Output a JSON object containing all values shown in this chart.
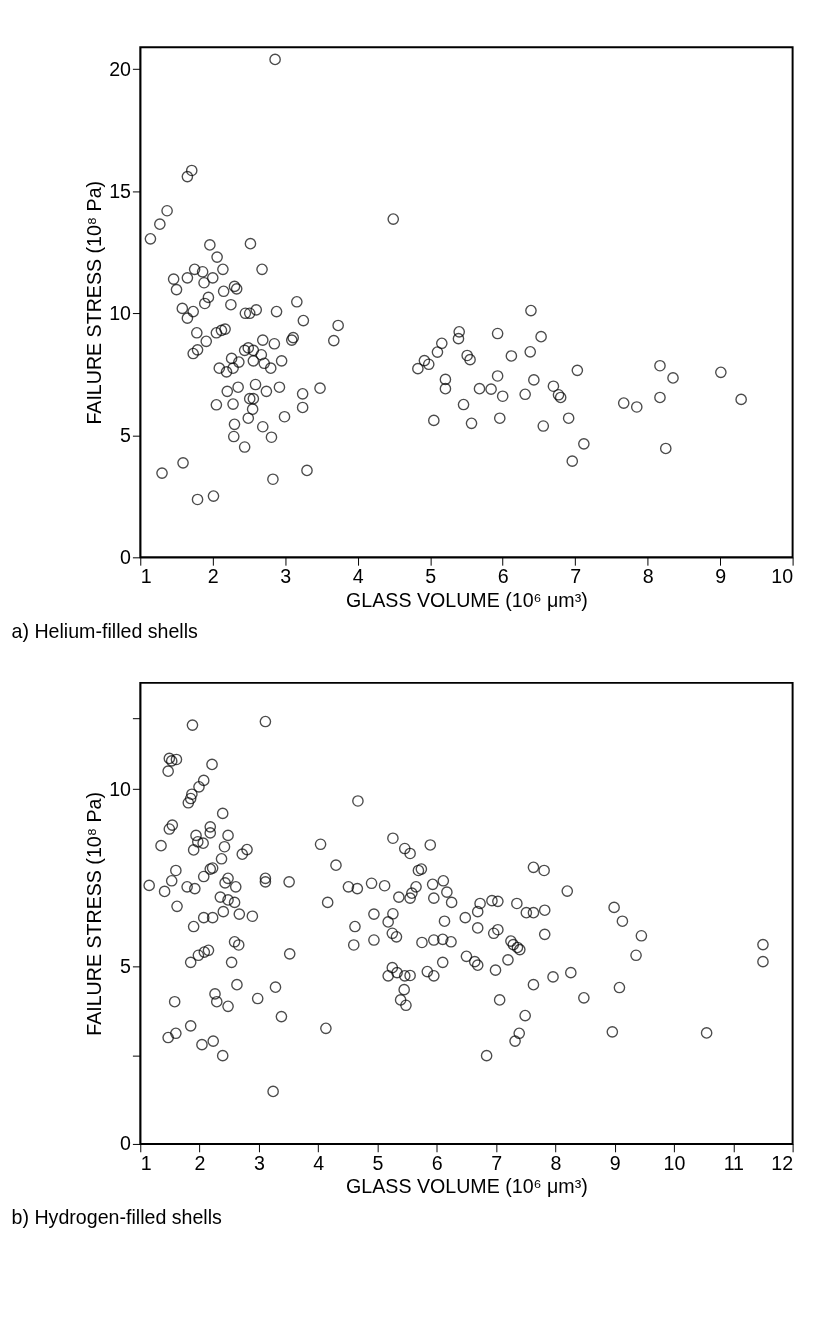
{
  "chart_data": [
    {
      "type": "scatter",
      "title": "a) Helium-filled shells",
      "xlabel": "GLASS VOLUME (10⁶ μm³)",
      "ylabel": "FAILURE STRESS (10⁸ Pa)",
      "xlim": [
        1,
        10
      ],
      "xticks": [
        1,
        2,
        3,
        4,
        5,
        6,
        7,
        8,
        9,
        10
      ],
      "ylim": [
        0,
        20.9
      ],
      "yticks": [
        0,
        5,
        10,
        15,
        20
      ],
      "grid": false,
      "marker": "circle",
      "series": [
        {
          "color": "#000000",
          "x": [
            1.14,
            1.27,
            1.37,
            1.65,
            1.71,
            2.86,
            4.49,
            1.46,
            1.5,
            1.58,
            1.65,
            1.73,
            1.65,
            1.75,
            1.86,
            1.88,
            1.89,
            1.94,
            1.96,
            2.06,
            2.0,
            2.14,
            2.15,
            2.25,
            2.3,
            2.33,
            1.78,
            1.73,
            1.79,
            1.91,
            2.05,
            2.12,
            2.17,
            2.09,
            2.19,
            2.26,
            2.28,
            2.35,
            2.36,
            2.2,
            2.05,
            2.28,
            2.3,
            2.29,
            2.44,
            2.45,
            2.51,
            2.6,
            2.52,
            2.68,
            2.88,
            2.44,
            2.49,
            2.56,
            2.67,
            2.69,
            2.85,
            2.95,
            2.56,
            2.71,
            2.8,
            2.59,
            2.56,
            2.74,
            2.92,
            2.51,
            2.49,
            2.55,
            2.69,
            2.81,
            2.99,
            3.11,
            3.09,
            3.16,
            3.25,
            3.24,
            3.24,
            3.48,
            3.67,
            3.73,
            3.3,
            2.83,
            1.3,
            1.59,
            1.79,
            2.01,
            4.83,
            4.92,
            4.98,
            5.1,
            5.16,
            5.21,
            5.21,
            5.05,
            5.4,
            5.39,
            5.51,
            5.55,
            5.46,
            5.57,
            5.68,
            5.84,
            5.93,
            5.93,
            6.0,
            5.96,
            6.12,
            6.31,
            6.38,
            6.39,
            6.43,
            6.53,
            6.56,
            6.7,
            6.77,
            6.8,
            6.91,
            6.96,
            7.03,
            7.12,
            7.67,
            7.85,
            8.17,
            8.17,
            8.35,
            8.25,
            9.01,
            9.29
          ],
          "values": [
            13.05,
            13.65,
            14.2,
            15.6,
            15.85,
            20.4,
            13.86,
            11.4,
            10.97,
            10.2,
            9.8,
            10.07,
            11.45,
            11.8,
            11.7,
            11.25,
            10.4,
            10.65,
            12.8,
            12.3,
            11.45,
            11.8,
            10.9,
            10.35,
            11.1,
            11.0,
            9.2,
            8.35,
            8.5,
            8.85,
            9.2,
            9.3,
            9.35,
            7.75,
            7.6,
            8.15,
            7.75,
            6.97,
            8.0,
            6.8,
            6.25,
            6.28,
            5.45,
            4.95,
            4.52,
            10.0,
            10.0,
            10.14,
            12.85,
            11.8,
            10.07,
            8.48,
            8.58,
            8.48,
            8.3,
            8.9,
            8.75,
            8.05,
            8.05,
            7.95,
            7.75,
            7.08,
            6.5,
            6.8,
            6.97,
            6.5,
            5.7,
            6.07,
            5.35,
            4.92,
            5.76,
            9.0,
            8.9,
            10.47,
            9.7,
            6.7,
            6.14,
            6.93,
            8.88,
            9.5,
            3.56,
            3.2,
            3.45,
            3.87,
            2.37,
            2.51,
            7.73,
            8.06,
            7.91,
            8.41,
            8.77,
            7.29,
            6.91,
            5.61,
            9.24,
            8.96,
            8.27,
            8.1,
            6.26,
            5.49,
            6.91,
            6.89,
            7.43,
            9.17,
            6.6,
            5.7,
            8.25,
            6.68,
            8.42,
            10.11,
            7.27,
            9.04,
            5.38,
            7.01,
            6.66,
            6.55,
            5.7,
            3.94,
            7.66,
            4.65,
            6.32,
            6.16,
            7.85,
            6.55,
            7.35,
            4.46,
            7.58,
            6.47
          ]
        }
      ]
    },
    {
      "type": "scatter",
      "title": "b) Hydrogen-filled shells",
      "xlabel": "GLASS VOLUME (10⁶ μm³)",
      "ylabel": "FAILURE STRESS (10⁸ Pa)",
      "xlim": [
        1,
        12
      ],
      "xticks": [
        1,
        2,
        3,
        4,
        5,
        6,
        7,
        8,
        9,
        10,
        11,
        12
      ],
      "ylim": [
        0,
        13
      ],
      "yticks": [
        0,
        {
          "value": 2.5,
          "label": null
        },
        5,
        10,
        {
          "value": 12,
          "label": null
        }
      ],
      "grid": false,
      "marker": "circle",
      "series": [
        {
          "color": "#000000",
          "x": [
            1.15,
            1.35,
            1.41,
            1.53,
            1.6,
            1.62,
            1.47,
            1.49,
            1.53,
            1.61,
            1.49,
            1.54,
            1.58,
            1.47,
            1.6,
            1.85,
            1.88,
            1.81,
            1.85,
            1.87,
            1.99,
            2.07,
            2.21,
            1.94,
            1.97,
            1.9,
            2.06,
            2.18,
            2.18,
            1.79,
            1.92,
            2.07,
            2.18,
            2.22,
            2.39,
            2.48,
            2.42,
            2.37,
            2.48,
            2.43,
            2.35,
            2.48,
            2.59,
            2.61,
            2.72,
            2.8,
            2.67,
            2.89,
            2.4,
            2.22,
            2.07,
            1.9,
            1.85,
            1.98,
            2.08,
            2.15,
            2.54,
            2.59,
            2.66,
            2.63,
            2.26,
            2.29,
            2.48,
            2.04,
            2.23,
            2.39,
            2.98,
            3.11,
            3.11,
            3.11,
            3.51,
            3.52,
            3.28,
            3.38,
            3.24,
            4.04,
            4.3,
            4.16,
            4.13,
            4.51,
            4.66,
            4.67,
            4.62,
            4.6,
            4.9,
            5.12,
            4.94,
            4.94,
            5.26,
            5.46,
            5.55,
            5.26,
            5.18,
            5.25,
            5.32,
            5.36,
            5.55,
            5.58,
            5.65,
            5.69,
            5.74,
            5.89,
            5.93,
            5.95,
            6.11,
            6.17,
            6.25,
            6.13,
            5.75,
            5.95,
            6.1,
            6.24,
            6.1,
            5.84,
            5.95,
            5.18,
            5.25,
            5.33,
            5.46,
            5.55,
            5.45,
            5.39,
            5.48,
            6.48,
            6.69,
            6.73,
            6.69,
            6.5,
            6.64,
            6.69,
            6.93,
            7.03,
            6.96,
            7.03,
            6.99,
            7.2,
            7.25,
            7.29,
            7.36,
            7.4,
            7.35,
            7.51,
            7.63,
            7.82,
            7.63,
            7.81,
            7.82,
            7.06,
            7.63,
            7.96,
            8.26,
            8.2,
            8.48,
            7.49,
            7.39,
            7.32,
            6.84,
            8.99,
            9.13,
            9.45,
            9.36,
            9.08,
            8.96,
            10.55,
            11.5,
            11.5
          ],
          "values": [
            7.29,
            8.41,
            7.12,
            7.42,
            7.71,
            6.7,
            10.51,
            10.87,
            10.8,
            10.84,
            8.88,
            8.99,
            4.01,
            3.0,
            3.12,
            3.33,
            11.81,
            9.62,
            9.74,
            9.86,
            10.07,
            10.25,
            10.7,
            8.7,
            8.52,
            8.29,
            8.48,
            8.94,
            8.77,
            7.25,
            7.2,
            7.54,
            7.75,
            7.78,
            9.32,
            8.7,
            8.38,
            8.04,
            7.49,
            7.36,
            6.96,
            6.88,
            6.81,
            7.25,
            8.17,
            8.3,
            6.48,
            6.42,
            6.55,
            6.38,
            6.38,
            6.13,
            5.12,
            5.32,
            5.41,
            5.46,
            5.12,
            5.7,
            5.61,
            4.49,
            4.23,
            4.01,
            3.88,
            2.8,
            2.9,
            2.49,
            4.1,
            7.49,
            7.39,
            11.91,
            7.39,
            5.36,
            4.42,
            3.59,
            1.48,
            8.45,
            7.86,
            6.81,
            3.26,
            7.25,
            7.2,
            9.67,
            6.13,
            5.61,
            7.35,
            7.28,
            6.48,
            5.75,
            8.62,
            8.33,
            8.19,
            6.49,
            6.26,
            5.94,
            5.84,
            6.96,
            6.93,
            7.07,
            7.25,
            7.71,
            7.75,
            8.43,
            7.32,
            6.93,
            7.42,
            7.1,
            6.81,
            6.28,
            5.68,
            5.75,
            5.77,
            5.7,
            5.12,
            4.86,
            4.74,
            4.74,
            4.97,
            4.83,
            4.74,
            4.75,
            4.35,
            4.06,
            3.91,
            6.38,
            6.55,
            6.78,
            6.09,
            5.29,
            5.14,
            5.04,
            6.86,
            6.84,
            5.94,
            6.04,
            4.9,
            5.19,
            5.72,
            5.62,
            5.54,
            5.48,
            6.78,
            6.52,
            6.52,
            6.59,
            7.8,
            7.71,
            5.91,
            4.06,
            4.49,
            4.71,
            4.83,
            7.13,
            4.12,
            3.62,
            3.12,
            2.9,
            2.49,
            6.67,
            6.28,
            5.87,
            5.32,
            4.41,
            3.16,
            3.13,
            5.62,
            5.14
          ]
        }
      ]
    }
  ]
}
